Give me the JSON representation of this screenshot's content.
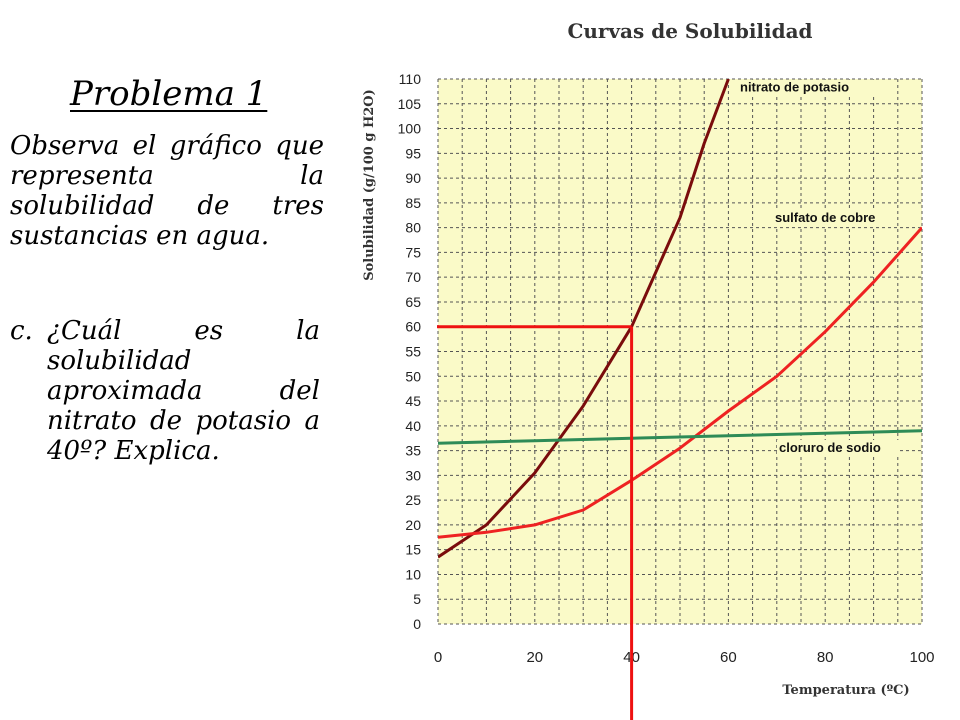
{
  "slide": {
    "problem_title": "Problema 1",
    "statement": "Observa el gráfico que representa la solubilidad de tres sustancias en agua.",
    "question_letter": "c.",
    "question_text": "¿Cuál es la solubilidad aproximada del nitrato de potasio a 40º? Explica."
  },
  "chart_data": {
    "type": "line",
    "title": "Curvas de Solubilidad",
    "xlabel": "Temperatura (ºC)",
    "ylabel": "Solubilidad (g/100 g H2O)",
    "xlim": [
      0,
      100
    ],
    "ylim": [
      0,
      110
    ],
    "x_ticks": [
      0,
      20,
      40,
      60,
      80,
      100
    ],
    "y_ticks": [
      0,
      5,
      10,
      15,
      20,
      25,
      30,
      35,
      40,
      45,
      50,
      55,
      60,
      65,
      70,
      75,
      80,
      85,
      90,
      95,
      100,
      105,
      110
    ],
    "grid": true,
    "background_color": "#fafac8",
    "series": [
      {
        "name": "nitrato de potasio",
        "color": "#7a0c0c",
        "points": [
          [
            0,
            13.5
          ],
          [
            10,
            20
          ],
          [
            20,
            30.5
          ],
          [
            30,
            44
          ],
          [
            40,
            60
          ],
          [
            50,
            82
          ],
          [
            55,
            97
          ],
          [
            60,
            110
          ]
        ]
      },
      {
        "name": "sulfato de cobre",
        "color": "#ee2222",
        "points": [
          [
            0,
            17.5
          ],
          [
            10,
            18.5
          ],
          [
            20,
            20
          ],
          [
            30,
            23
          ],
          [
            40,
            29
          ],
          [
            50,
            35.5
          ],
          [
            60,
            43
          ],
          [
            70,
            50
          ],
          [
            80,
            59
          ],
          [
            90,
            69
          ],
          [
            100,
            80
          ]
        ]
      },
      {
        "name": "cloruro de sodio",
        "color": "#2e8b57",
        "points": [
          [
            0,
            36.5
          ],
          [
            20,
            37
          ],
          [
            40,
            37.5
          ],
          [
            60,
            38
          ],
          [
            80,
            38.5
          ],
          [
            100,
            39
          ]
        ]
      }
    ],
    "annotations": {
      "color": "#ee1111",
      "guide_x": 40,
      "guide_y": 60
    }
  }
}
